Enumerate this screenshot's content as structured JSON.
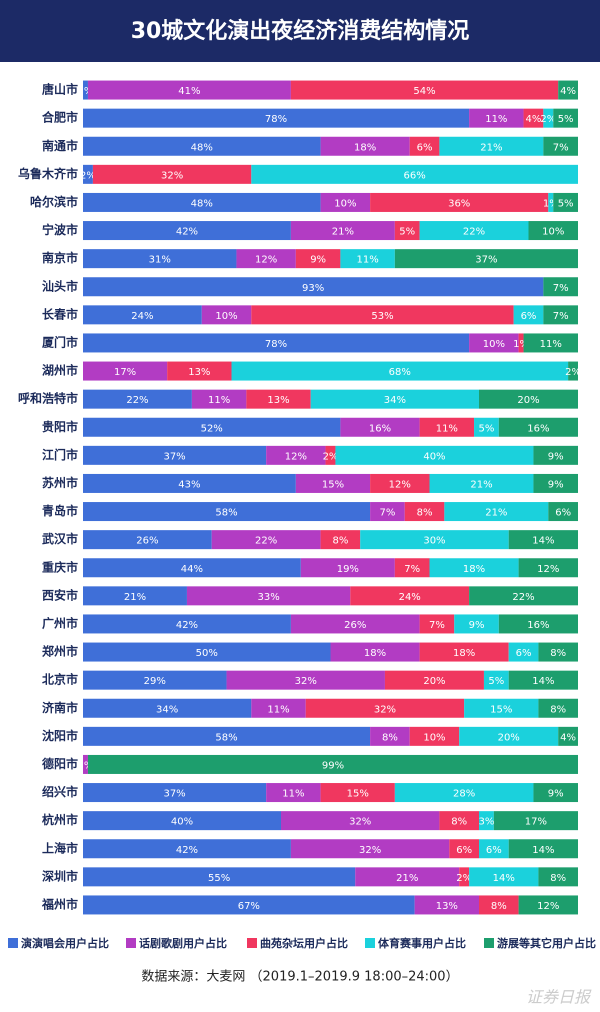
{
  "chart_data": {
    "type": "stacked-bar",
    "title": "30城文化演出夜经济消费结构情况",
    "categories": [
      "唐山市",
      "合肥市",
      "南通市",
      "乌鲁木齐市",
      "哈尔滨市",
      "宁波市",
      "南京市",
      "汕头市",
      "长春市",
      "厦门市",
      "湖州市",
      "呼和浩特市",
      "贵阳市",
      "江门市",
      "苏州市",
      "青岛市",
      "武汉市",
      "重庆市",
      "西安市",
      "广州市",
      "郑州市",
      "北京市",
      "济南市",
      "沈阳市",
      "德阳市",
      "绍兴市",
      "杭州市",
      "上海市",
      "深圳市",
      "福州市"
    ],
    "xlim": [
      0,
      100
    ],
    "series": [
      {
        "name": "演演唱会用户占比",
        "color": "#3f6fd8",
        "values": [
          1,
          78,
          48,
          2,
          48,
          42,
          31,
          93,
          24,
          78,
          null,
          22,
          52,
          37,
          43,
          58,
          26,
          44,
          21,
          42,
          50,
          29,
          34,
          58,
          null,
          37,
          40,
          42,
          55,
          67
        ],
        "value_labels": [
          "1%",
          "78%",
          "48%",
          "2%",
          "48%",
          "42%",
          "31%",
          "93%",
          "24%",
          "78%",
          null,
          "22%",
          "52%",
          "37%",
          "43%",
          "58%",
          "26%",
          "44%",
          "21%",
          "42%",
          "50%",
          "29%",
          "34%",
          "58%",
          null,
          "37%",
          "40%",
          "42%",
          "55%",
          "67%"
        ]
      },
      {
        "name": "话剧歌剧用户占比",
        "color": "#b23cc3",
        "values": [
          41,
          11,
          18,
          null,
          10,
          21,
          12,
          null,
          10,
          10,
          17,
          11,
          16,
          12,
          15,
          7,
          22,
          19,
          33,
          26,
          18,
          32,
          11,
          8,
          1,
          11,
          32,
          32,
          21,
          13
        ],
        "value_labels": [
          "41%",
          "11%",
          "18%",
          null,
          "10%",
          "21%",
          "12%",
          null,
          "10%",
          "10%",
          "17%",
          "11%",
          "16%",
          "12%",
          "15%",
          "7%",
          "22%",
          "19%",
          "33%",
          "26%",
          "18%",
          "32%",
          "11%",
          "8%",
          "1%",
          "11%",
          "32%",
          "32%",
          "21%",
          "13%"
        ]
      },
      {
        "name": "曲苑杂坛用户占比",
        "color": "#f0375f",
        "values": [
          54,
          4,
          6,
          32,
          36,
          5,
          9,
          null,
          53,
          1,
          13,
          13,
          11,
          2,
          12,
          8,
          8,
          7,
          24,
          7,
          18,
          20,
          32,
          10,
          null,
          15,
          8,
          6,
          2,
          8
        ],
        "value_labels": [
          "54%",
          "4%",
          "6%",
          "32%",
          "36%",
          "5%",
          "9%",
          null,
          "53%",
          "1%",
          "13%",
          "13%",
          "11%",
          "2%",
          "12%",
          "8%",
          "8%",
          "7%",
          "24%",
          "7%",
          "18%",
          "20%",
          "32%",
          "10%",
          null,
          "15%",
          "8%",
          "6%",
          "2%",
          "8%"
        ]
      },
      {
        "name": "体育赛事用户占比",
        "color": "#1bd1dc",
        "values": [
          null,
          2,
          21,
          66,
          1,
          22,
          11,
          null,
          6,
          null,
          68,
          34,
          5,
          40,
          21,
          21,
          30,
          18,
          null,
          9,
          6,
          5,
          15,
          20,
          null,
          28,
          3,
          6,
          14,
          null
        ],
        "value_labels": [
          null,
          "2%",
          "21%",
          "66%",
          "1%",
          "22%",
          "11%",
          null,
          "6%",
          null,
          "68%",
          "34%",
          "5%",
          "40%",
          "21%",
          "21%",
          "30%",
          "18%",
          null,
          "9%",
          "6%",
          "5%",
          "15%",
          "20%",
          null,
          "28%",
          "3%",
          "6%",
          "14%",
          null
        ]
      },
      {
        "name": "游展等其它用户占比",
        "color": "#1d9e6d",
        "values": [
          4,
          5,
          7,
          null,
          5,
          10,
          37,
          7,
          7,
          11,
          2,
          20,
          16,
          9,
          9,
          6,
          14,
          12,
          22,
          16,
          8,
          14,
          8,
          4,
          99,
          9,
          17,
          14,
          8,
          12
        ],
        "value_labels": [
          "4%",
          "5%",
          "7%",
          null,
          "5%",
          "10%",
          "37%",
          "7%",
          "7%",
          "11%",
          "2%",
          "20%",
          "16%",
          "9%",
          "9%",
          "6%",
          "14%",
          "12%",
          "22%",
          "16%",
          "8%",
          "14%",
          "8%",
          "4%",
          "99%",
          "9%",
          "17%",
          "14%",
          "8%",
          "12%"
        ]
      }
    ],
    "source": "数据来源：大麦网 （2019.1–2019.9 18:00–24:00）",
    "watermark": "证券日报"
  }
}
